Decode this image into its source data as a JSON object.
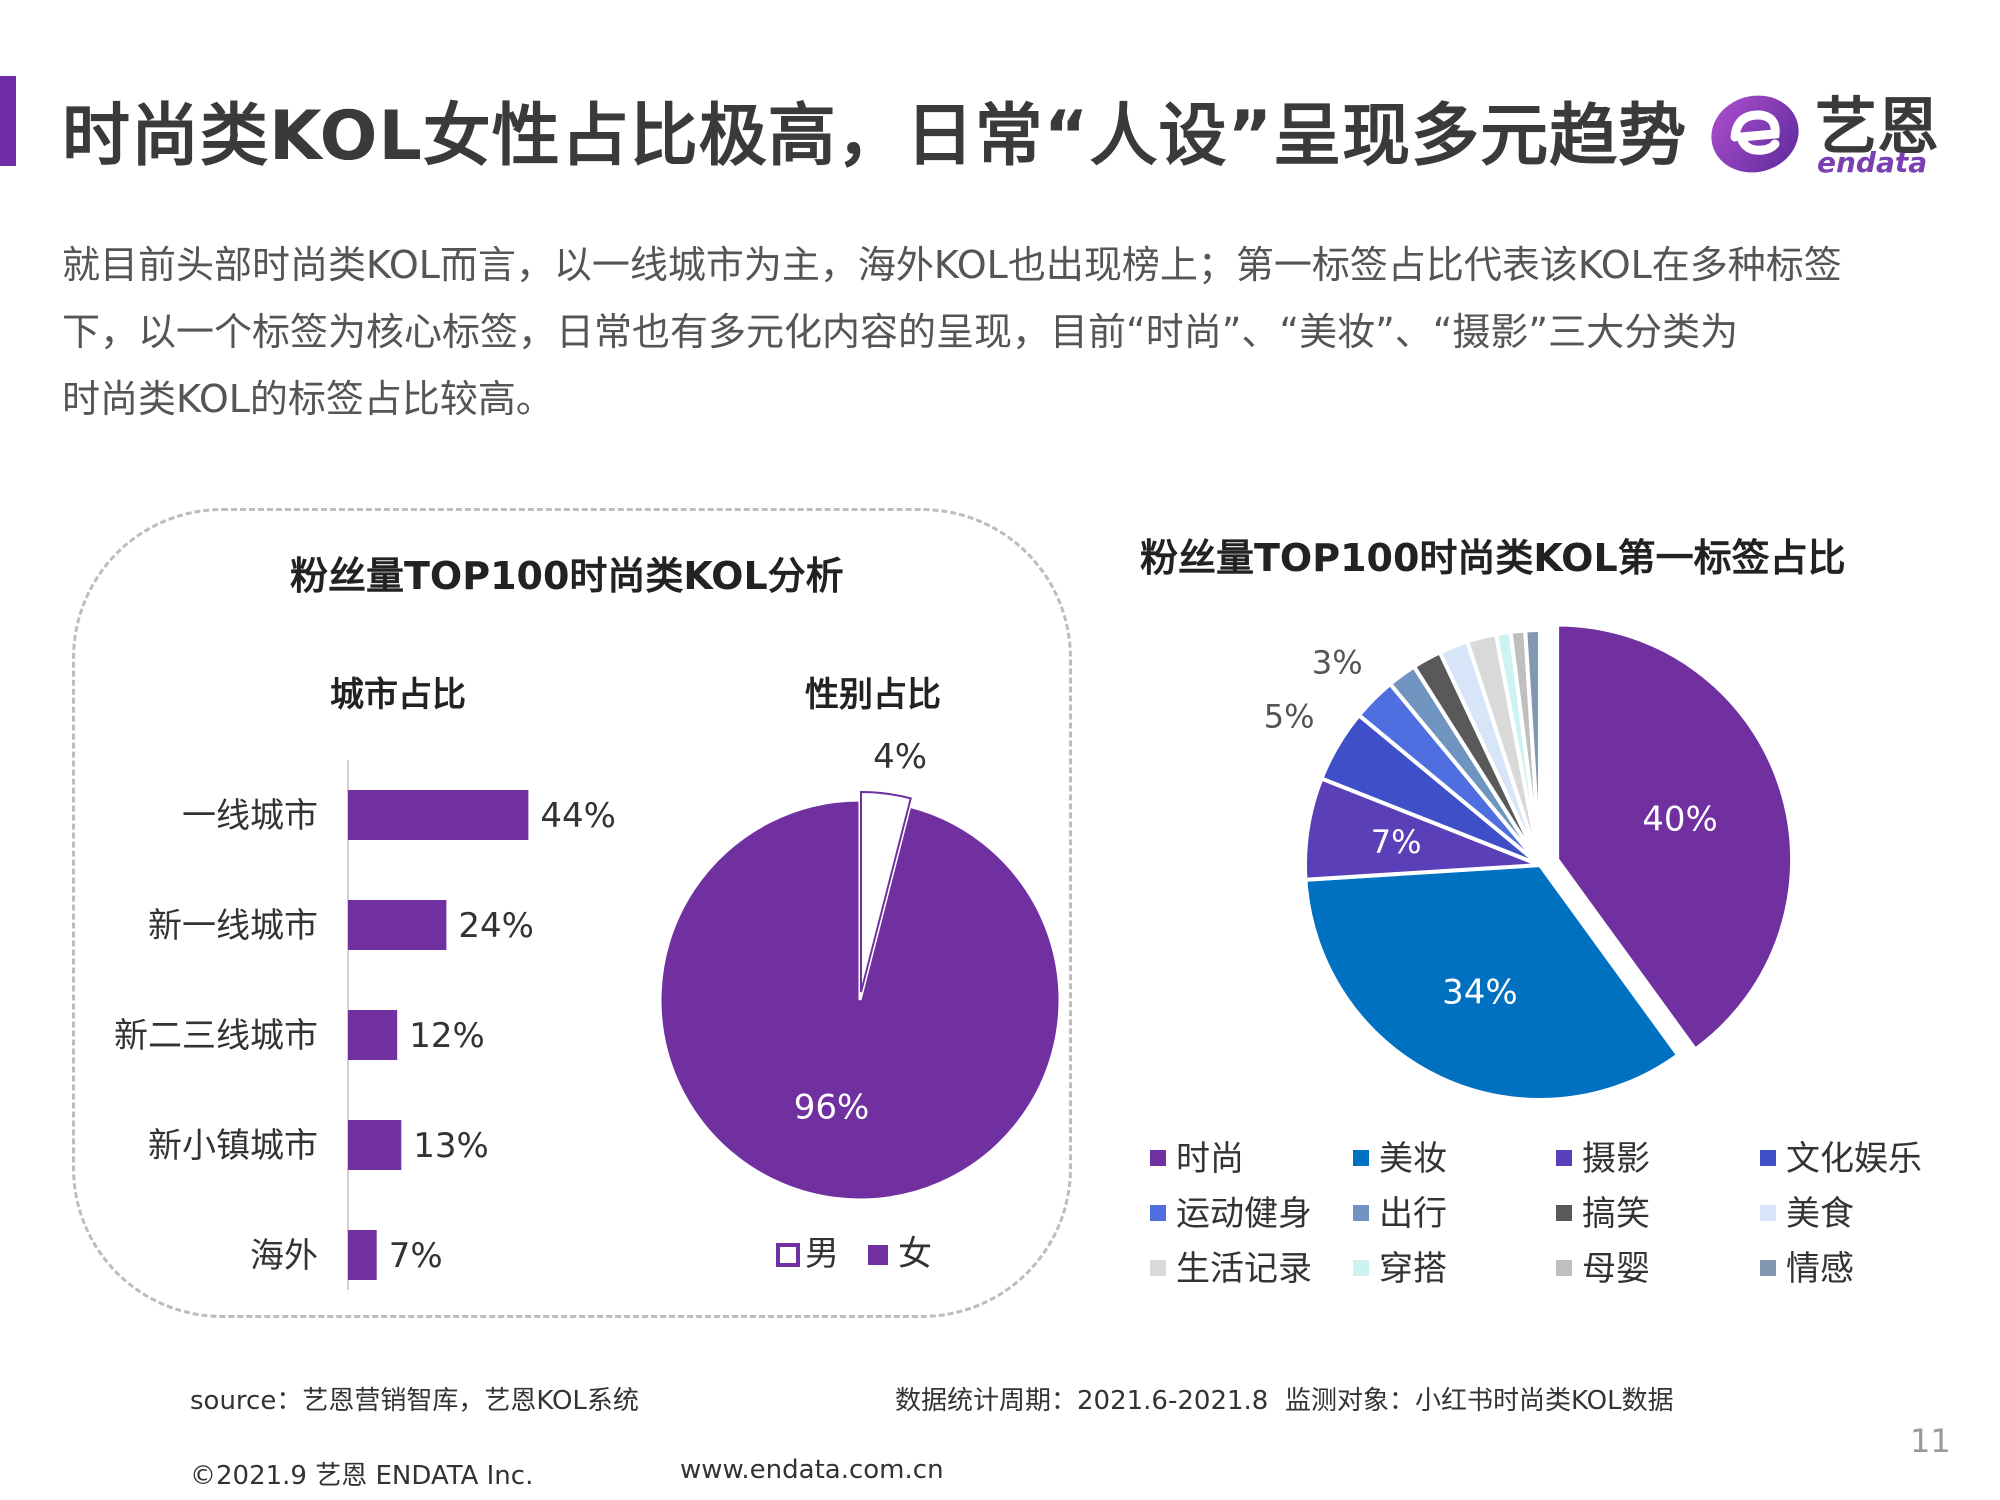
{
  "header": {
    "title": "时尚类KOL女性占比极高，日常“人设”呈现多元趋势",
    "logo_cn": "艺恩",
    "logo_en": "endata",
    "brand_color": "#6f2da8"
  },
  "intro": {
    "line1": "就目前头部时尚类KOL而言，以一线城市为主，海外KOL也出现榜上；第一标签占比代表该KOL在多种标签",
    "line2": "下，以一个标签为核心标签，日常也有多元化内容的呈现，目前“时尚”、“美妆”、“摄影”三大分类为",
    "line3": "时尚类KOL的标签占比较高。"
  },
  "left_panel": {
    "title": "粉丝量TOP100时尚类KOL分析",
    "city_title": "城市占比",
    "gender_title": "性别占比"
  },
  "right_panel": {
    "title": "粉丝量TOP100时尚类KOL第一标签占比"
  },
  "chart_data": [
    {
      "type": "bar",
      "orientation": "horizontal",
      "title": "城市占比",
      "categories": [
        "一线城市",
        "新一线城市",
        "新二三线城市",
        "新小镇城市",
        "海外"
      ],
      "values": [
        44,
        24,
        12,
        13,
        7
      ],
      "value_labels": [
        "44%",
        "24%",
        "12%",
        "13%",
        "7%"
      ],
      "color": "#7030a0"
    },
    {
      "type": "pie",
      "title": "性别占比",
      "labels": [
        "男",
        "女"
      ],
      "values": [
        4,
        96
      ],
      "value_labels": [
        "4%",
        "96%"
      ],
      "colors": [
        "#ffffff",
        "#7030a0"
      ],
      "legend": "bottom"
    },
    {
      "type": "pie",
      "title": "粉丝量TOP100时尚类KOL第一标签占比",
      "labels": [
        "时尚",
        "美妆",
        "摄影",
        "文化娱乐",
        "运动健身",
        "出行",
        "搞笑",
        "美食",
        "生活记录",
        "穿搭",
        "母婴",
        "情感"
      ],
      "values": [
        40,
        34,
        7,
        5,
        3,
        2,
        2,
        2,
        2,
        1,
        1,
        1
      ],
      "value_labels": [
        "40%",
        "34%",
        "7%",
        "5%",
        "3%",
        "",
        "",
        "",
        "",
        "",
        "",
        ""
      ],
      "colors": [
        "#7030a0",
        "#0070c0",
        "#5b3fb8",
        "#3f4fc8",
        "#4f6fe0",
        "#6f94c0",
        "#595959",
        "#d6e6f8",
        "#d9d9d9",
        "#ccf2f2",
        "#bfbfbf",
        "#8497b0"
      ],
      "legend": "bottom"
    }
  ],
  "footer": {
    "source": "source：艺恩营销智库，艺恩KOL系统",
    "period": "数据统计周期：2021.6-2021.8",
    "target": "监测对象：小红书时尚类KOL数据",
    "copyright": "©2021.9 艺恩 ENDATA Inc.",
    "website": "www.endata.com.cn",
    "page": "11"
  }
}
